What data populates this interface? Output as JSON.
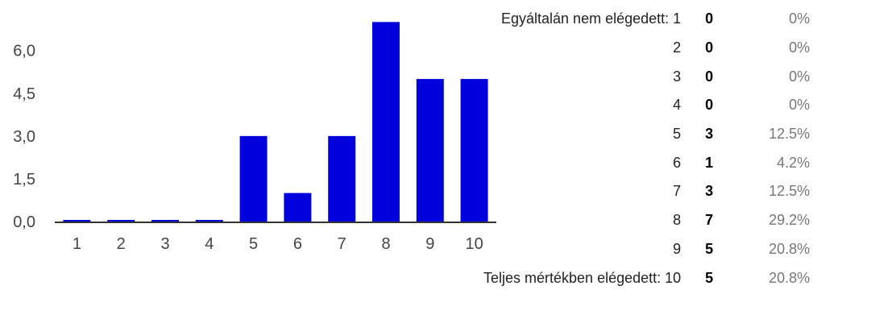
{
  "chart_data": {
    "type": "bar",
    "categories": [
      "1",
      "2",
      "3",
      "4",
      "5",
      "6",
      "7",
      "8",
      "9",
      "10"
    ],
    "values": [
      0,
      0,
      0,
      0,
      3,
      1,
      3,
      7,
      5,
      5
    ],
    "y_ticks": [
      "0,0",
      "1,5",
      "3,0",
      "4,5",
      "6,0"
    ],
    "y_tick_values": [
      0,
      1.5,
      3,
      4.5,
      6
    ],
    "ylim": [
      0,
      7.15
    ],
    "bar_color": "#0000dd",
    "grid": false,
    "title": "",
    "xlabel": "",
    "ylabel": ""
  },
  "summary_table": [
    {
      "label": "Egyáltalán nem elégedett: 1",
      "count": "0",
      "percent": "0%"
    },
    {
      "label": "2",
      "count": "0",
      "percent": "0%"
    },
    {
      "label": "3",
      "count": "0",
      "percent": "0%"
    },
    {
      "label": "4",
      "count": "0",
      "percent": "0%"
    },
    {
      "label": "5",
      "count": "3",
      "percent": "12.5%"
    },
    {
      "label": "6",
      "count": "1",
      "percent": "4.2%"
    },
    {
      "label": "7",
      "count": "3",
      "percent": "12.5%"
    },
    {
      "label": "8",
      "count": "7",
      "percent": "29.2%"
    },
    {
      "label": "9",
      "count": "5",
      "percent": "20.8%"
    },
    {
      "label": "Teljes mértékben elégedett: 10",
      "count": "5",
      "percent": "20.8%"
    }
  ]
}
